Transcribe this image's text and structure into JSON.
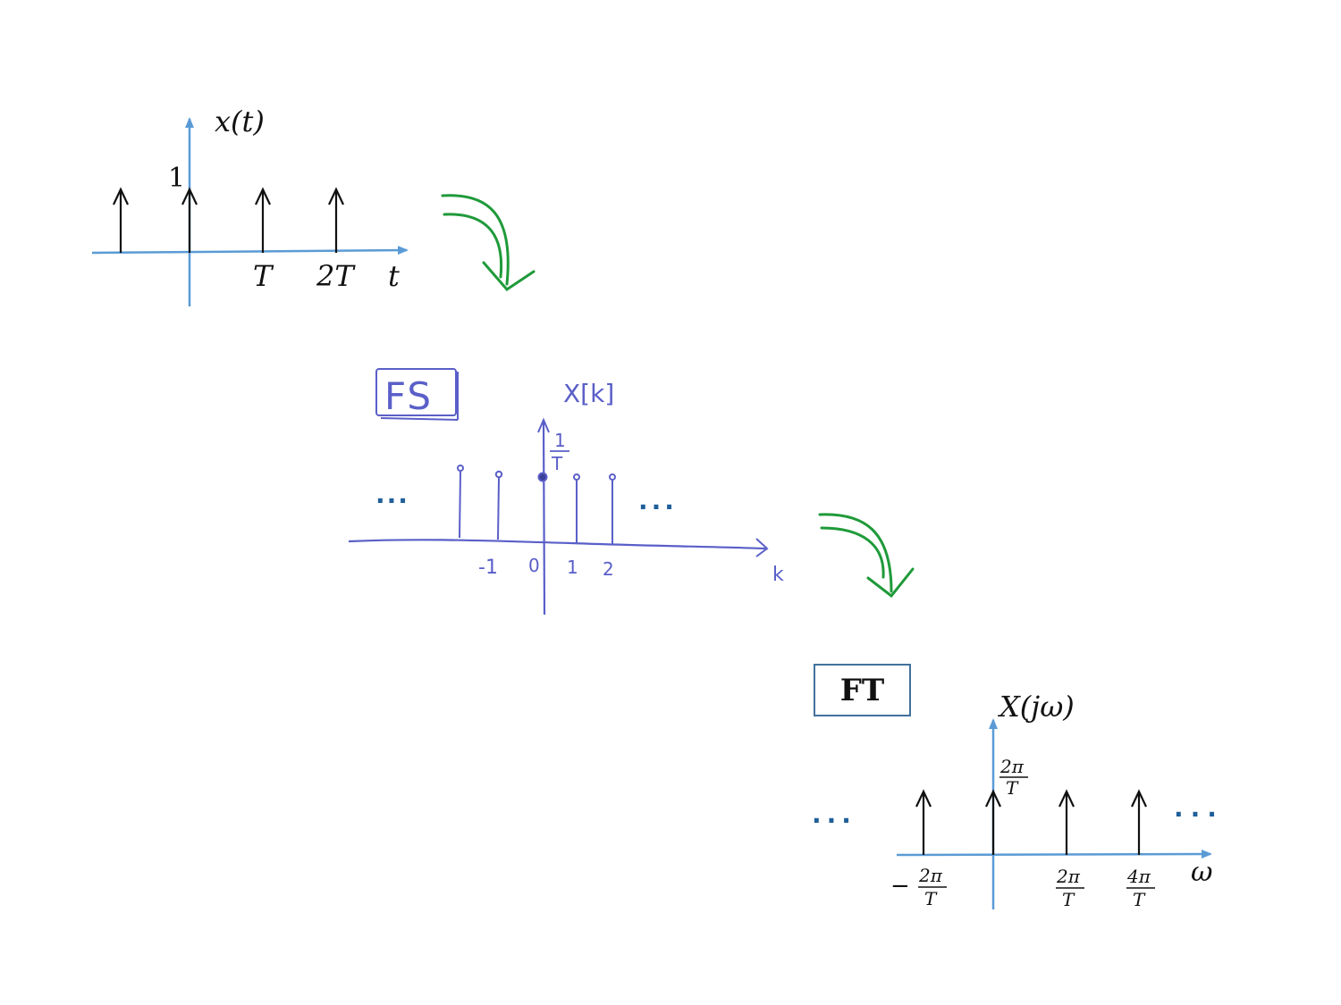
{
  "colors": {
    "axis": "#5b9bd5",
    "impulse": "#111111",
    "arrow": "#1f9a3a",
    "hand_ink": "#5a5fc8",
    "dots": "#1f5f9a",
    "box_border": "#41719c"
  },
  "time_plot": {
    "ylabel": "x(t)",
    "amplitude_label": "1",
    "xlabel": "t",
    "tick_T": "T",
    "tick_2T": "2T"
  },
  "fs_plot": {
    "box_label": "FS",
    "ylabel": "X[k]",
    "amp_num": "1",
    "amp_den": "T",
    "xlabel": "k",
    "ticks": [
      "-1",
      "0",
      "1",
      "2"
    ],
    "dots_left": "...",
    "dots_right": "..."
  },
  "ft_plot": {
    "box_label": "FT",
    "ylabel": "X(jω)",
    "xlabel": "ω",
    "amp_num": "2π",
    "amp_den": "T",
    "tick_neg_sign": "−",
    "tick_neg_num": "2π",
    "tick_neg_den": "T",
    "tick_1_num": "2π",
    "tick_1_den": "T",
    "tick_2_num": "4π",
    "tick_2_den": "T",
    "dots_left": "...",
    "dots_right": "..."
  },
  "icons": {
    "arrow1": "curved-down-arrow-icon",
    "arrow2": "curved-down-arrow-icon"
  }
}
